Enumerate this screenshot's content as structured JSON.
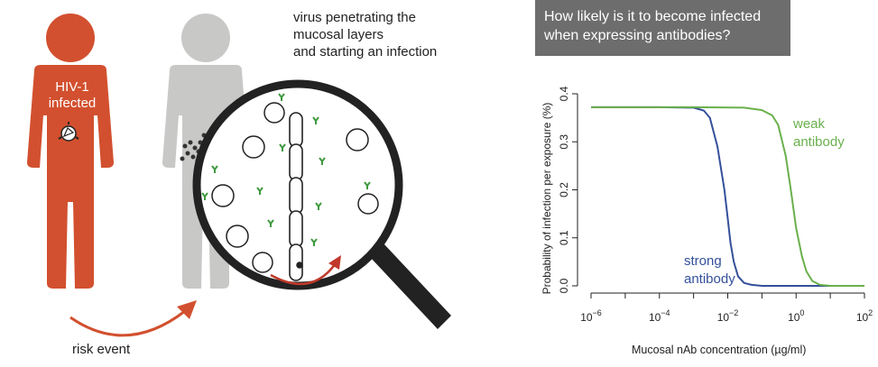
{
  "illustration": {
    "infected_label_line1": "HIV-1",
    "infected_label_line2": "infected",
    "virus_caption_line1": "virus penetrating the",
    "virus_caption_line2": "mucosal layers",
    "virus_caption_line3": "and starting an infection",
    "risk_label": "risk event",
    "colors": {
      "infected_person": "#d2502f",
      "exposed_person": "#c8c8c6",
      "antibody": "#3f9a3f",
      "arrow": "#d2502f",
      "magnifier_handle": "#222222"
    }
  },
  "question_box": {
    "line1": "How likely is it to become infected",
    "line2": "when expressing antibodies?",
    "background": "#6d6d6d"
  },
  "chart_data": {
    "type": "line",
    "title": "",
    "xlabel": "Mucosal nAb concentration (µg/ml)",
    "ylabel": "Probability of infection per exposure (%)",
    "x_scale": "log",
    "xlim": [
      1e-06,
      100
    ],
    "ylim": [
      0,
      0.4
    ],
    "x_ticks": [
      {
        "value": 1e-06,
        "base": "10",
        "exp": "−6"
      },
      {
        "value": 0.0001,
        "base": "10",
        "exp": "−4"
      },
      {
        "value": 0.01,
        "base": "10",
        "exp": "−2"
      },
      {
        "value": 1,
        "base": "10",
        "exp": "0"
      },
      {
        "value": 100,
        "base": "10",
        "exp": "2"
      }
    ],
    "y_ticks": [
      "0.0",
      "0.1",
      "0.2",
      "0.3",
      "0.4"
    ],
    "grid": false,
    "series": [
      {
        "name_line1": "strong",
        "name_line2": "antibody",
        "color": "#34509a",
        "x": [
          1e-06,
          0.0001,
          0.001,
          0.002,
          0.003,
          0.005,
          0.008,
          0.01,
          0.012,
          0.015,
          0.02,
          0.03,
          0.05,
          0.1,
          1,
          100
        ],
        "y": [
          0.372,
          0.372,
          0.371,
          0.365,
          0.35,
          0.29,
          0.2,
          0.14,
          0.09,
          0.05,
          0.02,
          0.006,
          0.002,
          0.0,
          0.0,
          0.0
        ]
      },
      {
        "name_line1": "weak",
        "name_line2": "antibody",
        "color": "#6ab04c",
        "x": [
          1e-06,
          0.001,
          0.03,
          0.1,
          0.2,
          0.3,
          0.5,
          0.7,
          1,
          1.5,
          2,
          3,
          5,
          10,
          100
        ],
        "y": [
          0.372,
          0.372,
          0.371,
          0.366,
          0.355,
          0.335,
          0.27,
          0.2,
          0.12,
          0.06,
          0.03,
          0.01,
          0.002,
          0.0,
          0.0
        ]
      }
    ]
  }
}
